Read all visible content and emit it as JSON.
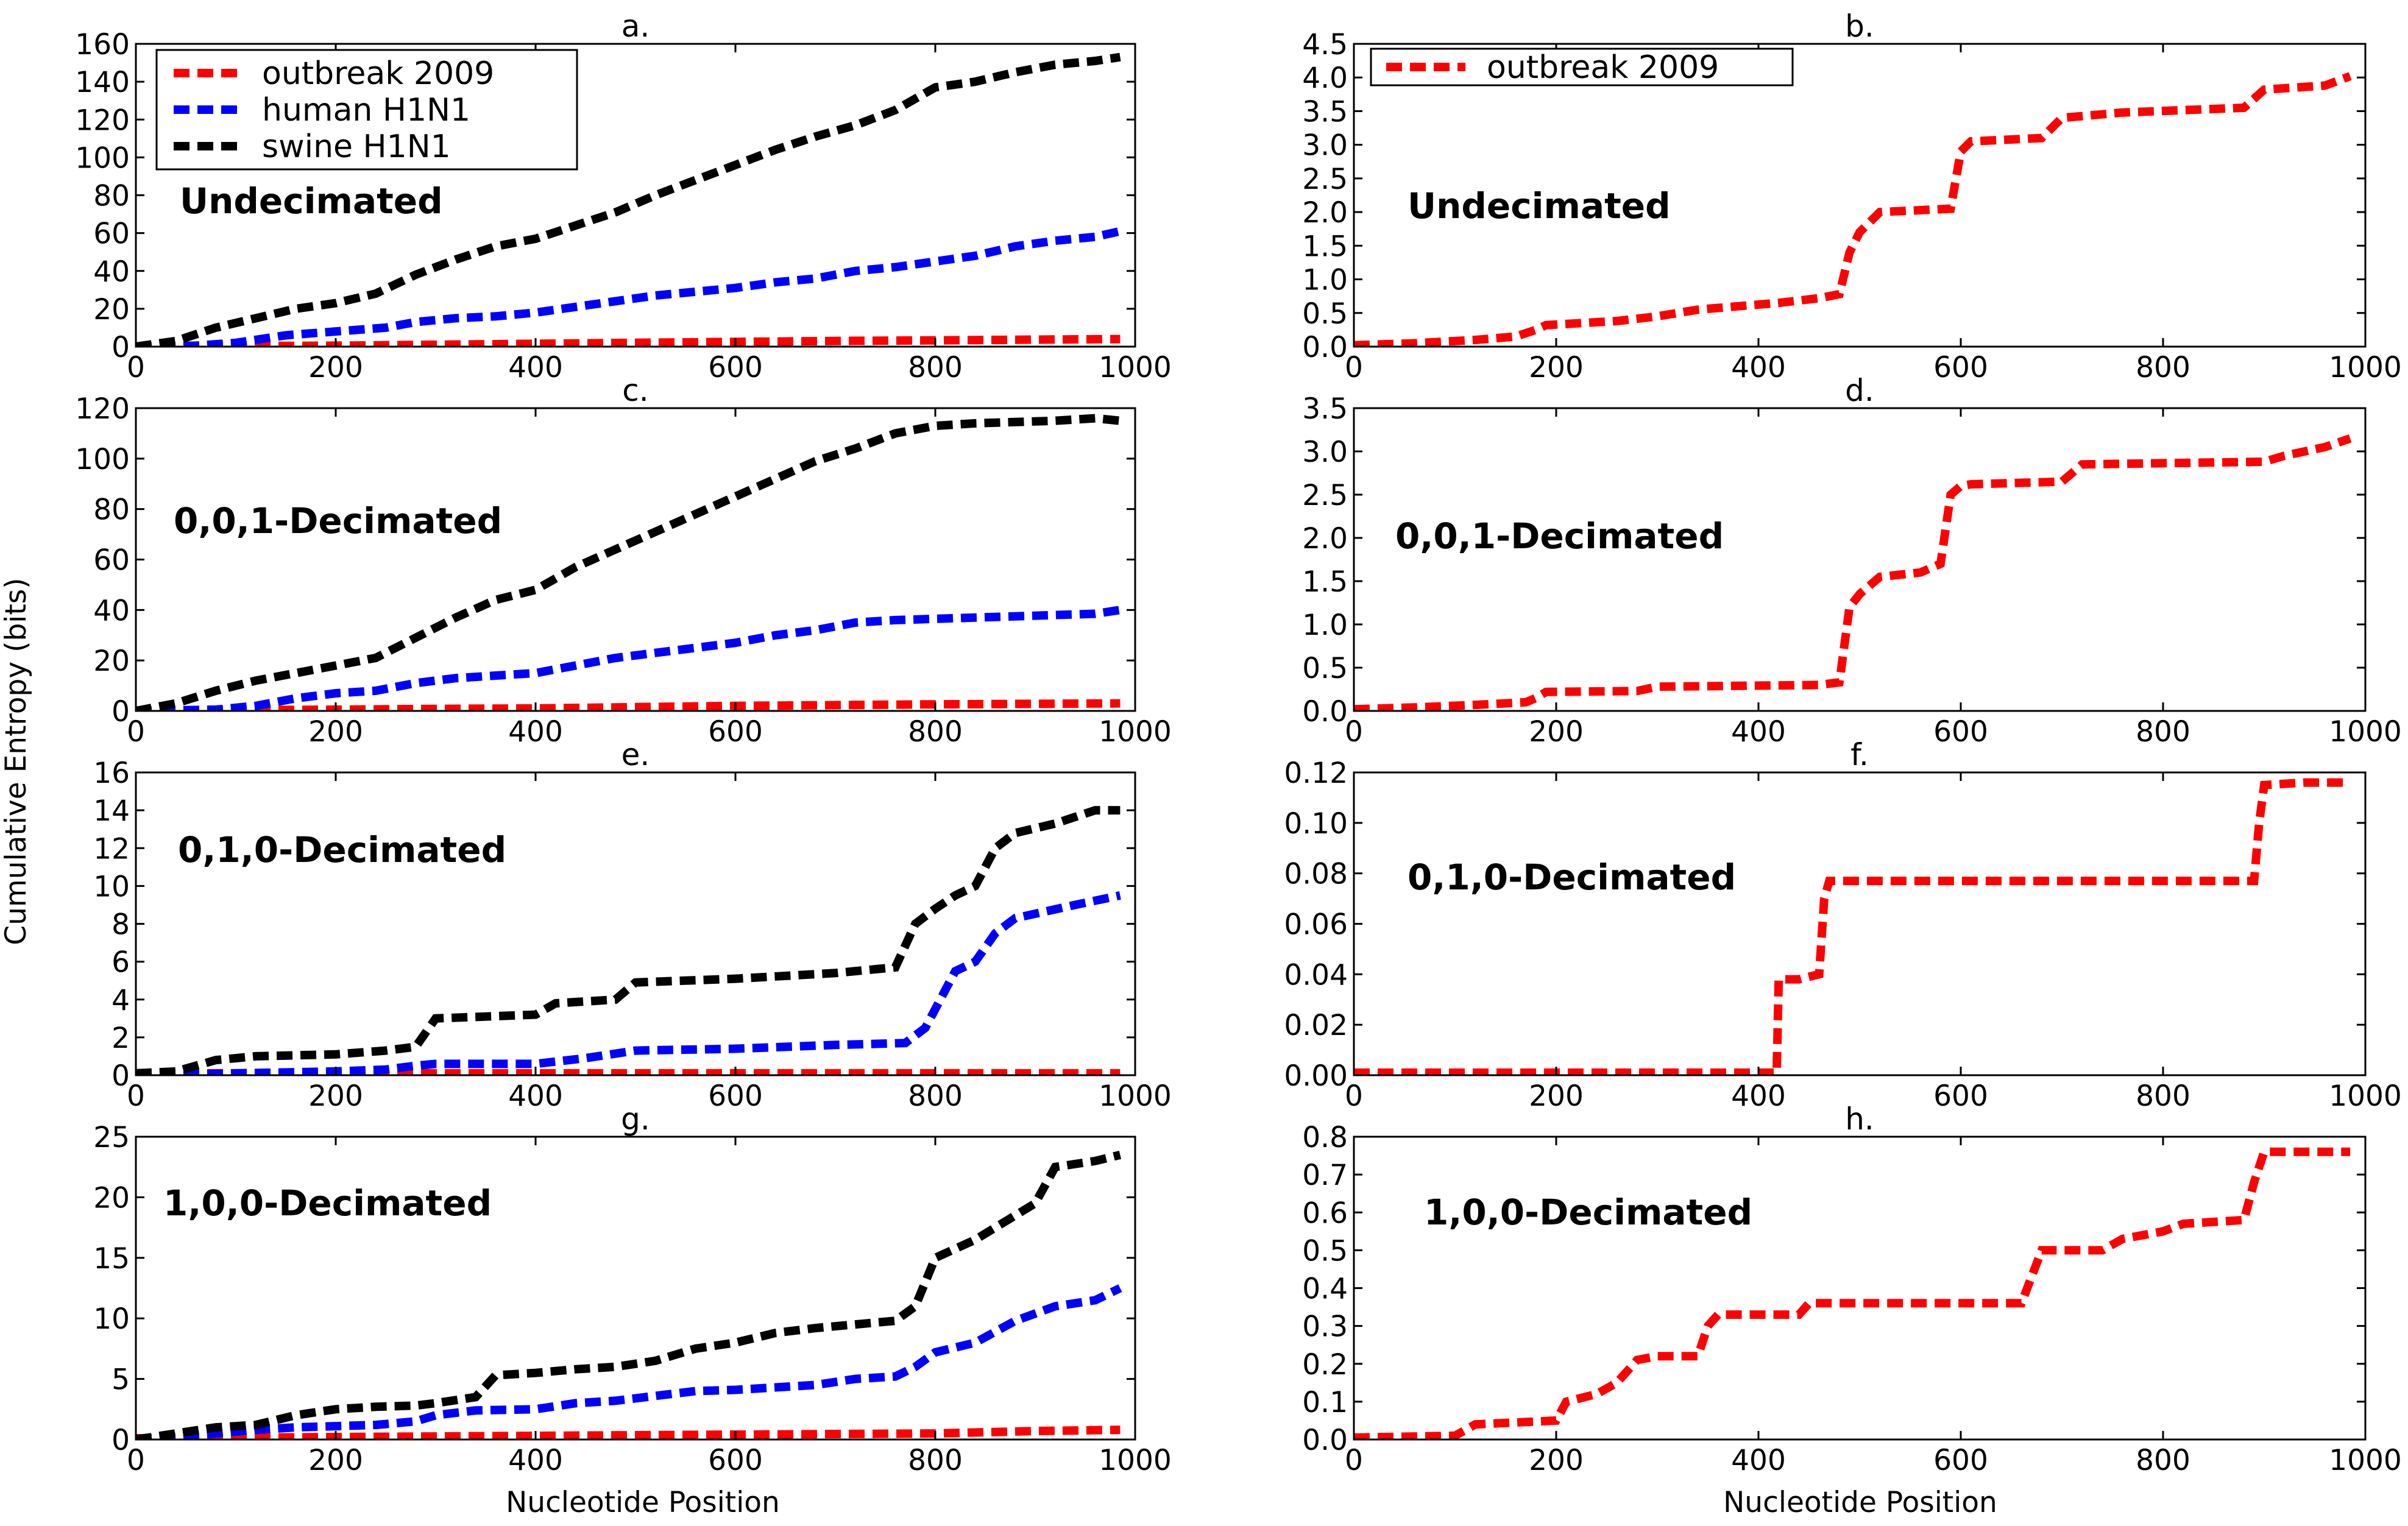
{
  "figure": {
    "ylabel": "Cumulative Entropy (bits)",
    "xlabel": "Nucleotide Position"
  },
  "legend_a": [
    "outbreak 2009",
    "human H1N1",
    "swine H1N1"
  ],
  "legend_b": [
    "outbreak 2009"
  ],
  "colors": {
    "outbreak": "#ff0000",
    "human": "#0000ff",
    "swine": "#000000"
  },
  "chart_data": [
    {
      "id": "a",
      "type": "line",
      "title": "a.",
      "annotation": "Undecimated",
      "xlim": [
        0,
        1000
      ],
      "ylim": [
        0,
        160
      ],
      "xticks": [
        0,
        200,
        400,
        600,
        800,
        1000
      ],
      "yticks": [
        0,
        20,
        40,
        60,
        80,
        100,
        120,
        140,
        160
      ],
      "ytick_labels": [
        "0",
        "20",
        "40",
        "60",
        "80",
        "100",
        "120",
        "140",
        "160"
      ],
      "series": [
        {
          "name": "outbreak 2009",
          "color": "#ff0000",
          "x": [
            0,
            100,
            200,
            300,
            400,
            500,
            600,
            700,
            800,
            900,
            985
          ],
          "y": [
            0,
            0.3,
            0.5,
            1.0,
            1.5,
            2.0,
            2.5,
            3.0,
            3.3,
            3.7,
            4.0
          ]
        },
        {
          "name": "human H1N1",
          "color": "#0000ff",
          "x": [
            0,
            60,
            100,
            150,
            200,
            250,
            280,
            320,
            360,
            400,
            440,
            480,
            520,
            560,
            600,
            640,
            680,
            720,
            760,
            800,
            840,
            880,
            920,
            960,
            985
          ],
          "y": [
            0,
            0.5,
            2,
            6,
            8,
            10,
            13,
            15,
            16,
            18,
            21,
            24,
            27,
            29,
            31,
            34,
            36,
            40,
            42,
            45,
            48,
            53,
            56,
            58,
            61
          ]
        },
        {
          "name": "swine H1N1",
          "color": "#000000",
          "x": [
            0,
            40,
            80,
            120,
            160,
            200,
            240,
            280,
            320,
            360,
            400,
            440,
            480,
            520,
            560,
            600,
            640,
            680,
            720,
            760,
            800,
            840,
            880,
            920,
            960,
            985
          ],
          "y": [
            0,
            3,
            10,
            15,
            20,
            23,
            28,
            38,
            46,
            53,
            57,
            64,
            71,
            80,
            88,
            96,
            104,
            111,
            117,
            125,
            137,
            140,
            145,
            149,
            151,
            153
          ]
        }
      ]
    },
    {
      "id": "b",
      "type": "line",
      "title": "b.",
      "annotation": "Undecimated",
      "xlim": [
        0,
        1000
      ],
      "ylim": [
        0,
        4.5
      ],
      "xticks": [
        0,
        200,
        400,
        600,
        800,
        1000
      ],
      "yticks": [
        0,
        0.5,
        1.0,
        1.5,
        2.0,
        2.5,
        3.0,
        3.5,
        4.0,
        4.5
      ],
      "ytick_labels": [
        "0.0",
        "0.5",
        "1.0",
        "1.5",
        "2.0",
        "2.5",
        "3.0",
        "3.5",
        "4.0",
        "4.5"
      ],
      "series": [
        {
          "name": "outbreak 2009",
          "color": "#ff0000",
          "x": [
            0,
            60,
            120,
            160,
            180,
            190,
            260,
            300,
            340,
            380,
            420,
            460,
            480,
            490,
            500,
            520,
            590,
            600,
            610,
            680,
            700,
            760,
            880,
            900,
            960,
            985
          ],
          "y": [
            0.02,
            0.05,
            0.1,
            0.15,
            0.25,
            0.32,
            0.38,
            0.45,
            0.55,
            0.6,
            0.65,
            0.72,
            0.78,
            1.4,
            1.7,
            2.0,
            2.05,
            2.9,
            3.05,
            3.1,
            3.4,
            3.48,
            3.55,
            3.82,
            3.88,
            4.02
          ]
        }
      ]
    },
    {
      "id": "c",
      "type": "line",
      "title": "c.",
      "annotation": "0,0,1-Decimated",
      "xlim": [
        0,
        1000
      ],
      "ylim": [
        0,
        120
      ],
      "xticks": [
        0,
        200,
        400,
        600,
        800,
        1000
      ],
      "yticks": [
        0,
        20,
        40,
        60,
        80,
        100,
        120
      ],
      "ytick_labels": [
        "0",
        "20",
        "40",
        "60",
        "80",
        "100",
        "120"
      ],
      "series": [
        {
          "name": "outbreak 2009",
          "color": "#ff0000",
          "x": [
            0,
            100,
            200,
            300,
            400,
            500,
            600,
            700,
            800,
            900,
            985
          ],
          "y": [
            0,
            0.3,
            0.5,
            0.8,
            1.0,
            1.5,
            2.0,
            2.3,
            2.6,
            2.8,
            3.0
          ]
        },
        {
          "name": "human H1N1",
          "color": "#0000ff",
          "x": [
            0,
            80,
            120,
            160,
            200,
            240,
            280,
            320,
            360,
            400,
            440,
            480,
            520,
            560,
            600,
            640,
            680,
            720,
            760,
            800,
            840,
            880,
            920,
            960,
            985
          ],
          "y": [
            0,
            0.5,
            2,
            5,
            7,
            8,
            11,
            13,
            14,
            15,
            18,
            21,
            23,
            25,
            27,
            30,
            32,
            35,
            36,
            36.5,
            37,
            37.5,
            38,
            38.5,
            40
          ]
        },
        {
          "name": "swine H1N1",
          "color": "#000000",
          "x": [
            0,
            40,
            80,
            120,
            160,
            200,
            240,
            280,
            320,
            360,
            400,
            440,
            480,
            520,
            560,
            600,
            640,
            680,
            720,
            760,
            800,
            840,
            880,
            920,
            960,
            985
          ],
          "y": [
            0,
            3,
            8,
            12,
            15,
            18,
            21,
            29,
            37,
            44,
            48,
            57,
            64,
            71,
            78,
            85,
            92,
            99,
            104,
            110,
            113,
            114,
            114.5,
            115,
            116,
            115
          ]
        }
      ]
    },
    {
      "id": "d",
      "type": "line",
      "title": "d.",
      "annotation": "0,0,1-Decimated",
      "xlim": [
        0,
        1000
      ],
      "ylim": [
        0,
        3.5
      ],
      "xticks": [
        0,
        200,
        400,
        600,
        800,
        1000
      ],
      "yticks": [
        0,
        0.5,
        1.0,
        1.5,
        2.0,
        2.5,
        3.0,
        3.5
      ],
      "ytick_labels": [
        "0.0",
        "0.5",
        "1.0",
        "1.5",
        "2.0",
        "2.5",
        "3.0",
        "3.5"
      ],
      "series": [
        {
          "name": "outbreak 2009",
          "color": "#ff0000",
          "x": [
            0,
            60,
            120,
            170,
            180,
            190,
            280,
            300,
            460,
            480,
            490,
            500,
            520,
            560,
            580,
            590,
            600,
            610,
            700,
            720,
            900,
            920,
            960,
            985
          ],
          "y": [
            0.02,
            0.04,
            0.07,
            0.1,
            0.15,
            0.22,
            0.23,
            0.28,
            0.3,
            0.33,
            1.2,
            1.35,
            1.55,
            1.6,
            1.7,
            2.5,
            2.6,
            2.62,
            2.65,
            2.85,
            2.88,
            2.95,
            3.05,
            3.15
          ]
        }
      ]
    },
    {
      "id": "e",
      "type": "line",
      "title": "e.",
      "annotation": "0,1,0-Decimated",
      "xlim": [
        0,
        1000
      ],
      "ylim": [
        0,
        16
      ],
      "xticks": [
        0,
        200,
        400,
        600,
        800,
        1000
      ],
      "yticks": [
        0,
        2,
        4,
        6,
        8,
        10,
        12,
        14,
        16
      ],
      "ytick_labels": [
        "0",
        "2",
        "4",
        "6",
        "8",
        "10",
        "12",
        "14",
        "16"
      ],
      "series": [
        {
          "name": "outbreak 2009",
          "color": "#ff0000",
          "x": [
            0,
            200,
            400,
            600,
            800,
            985
          ],
          "y": [
            0.1,
            0.1,
            0.1,
            0.1,
            0.1,
            0.1
          ]
        },
        {
          "name": "human H1N1",
          "color": "#0000ff",
          "x": [
            0,
            100,
            200,
            250,
            280,
            300,
            400,
            450,
            500,
            600,
            700,
            770,
            790,
            800,
            820,
            840,
            860,
            880,
            940,
            985
          ],
          "y": [
            0,
            0.1,
            0.2,
            0.3,
            0.5,
            0.6,
            0.6,
            0.9,
            1.3,
            1.4,
            1.6,
            1.7,
            2.5,
            3.5,
            5.5,
            6.0,
            7.5,
            8.3,
            9.0,
            9.5
          ]
        },
        {
          "name": "swine H1N1",
          "color": "#000000",
          "x": [
            0,
            40,
            80,
            120,
            200,
            250,
            280,
            300,
            400,
            420,
            480,
            500,
            600,
            700,
            760,
            780,
            800,
            820,
            840,
            860,
            880,
            920,
            960,
            985
          ],
          "y": [
            0.1,
            0.2,
            0.8,
            1.0,
            1.1,
            1.3,
            1.5,
            3.0,
            3.2,
            3.8,
            4.0,
            4.9,
            5.1,
            5.4,
            5.7,
            8.0,
            8.8,
            9.5,
            10.0,
            12.0,
            12.8,
            13.3,
            14.0,
            14.0
          ]
        }
      ]
    },
    {
      "id": "f",
      "type": "line",
      "title": "f.",
      "annotation": "0,1,0-Decimated",
      "xlim": [
        0,
        1000
      ],
      "ylim": [
        0,
        0.12
      ],
      "xticks": [
        0,
        200,
        400,
        600,
        800,
        1000
      ],
      "yticks": [
        0,
        0.02,
        0.04,
        0.06,
        0.08,
        0.1,
        0.12
      ],
      "ytick_labels": [
        "0.00",
        "0.02",
        "0.04",
        "0.06",
        "0.08",
        "0.10",
        "0.12"
      ],
      "series": [
        {
          "name": "outbreak 2009",
          "color": "#ff0000",
          "x": [
            0,
            400,
            418,
            420,
            440,
            460,
            465,
            470,
            860,
            890,
            895,
            900,
            940,
            985
          ],
          "y": [
            0.001,
            0.001,
            0.001,
            0.038,
            0.038,
            0.04,
            0.07,
            0.077,
            0.077,
            0.077,
            0.1,
            0.115,
            0.116,
            0.116
          ]
        }
      ]
    },
    {
      "id": "g",
      "type": "line",
      "title": "g.",
      "annotation": "1,0,0-Decimated",
      "xlim": [
        0,
        1000
      ],
      "ylim": [
        0,
        25
      ],
      "xticks": [
        0,
        200,
        400,
        600,
        800,
        1000
      ],
      "yticks": [
        0,
        5,
        10,
        15,
        20,
        25
      ],
      "ytick_labels": [
        "0",
        "5",
        "10",
        "15",
        "20",
        "25"
      ],
      "series": [
        {
          "name": "outbreak 2009",
          "color": "#ff0000",
          "x": [
            0,
            200,
            400,
            600,
            800,
            900,
            985
          ],
          "y": [
            0.1,
            0.2,
            0.3,
            0.4,
            0.5,
            0.7,
            0.8
          ]
        },
        {
          "name": "human H1N1",
          "color": "#0000ff",
          "x": [
            0,
            80,
            120,
            160,
            200,
            240,
            280,
            300,
            340,
            400,
            440,
            480,
            520,
            560,
            600,
            640,
            680,
            720,
            760,
            780,
            800,
            840,
            880,
            920,
            960,
            985
          ],
          "y": [
            0,
            0.5,
            0.8,
            1.0,
            1.1,
            1.2,
            1.5,
            2.0,
            2.4,
            2.5,
            3.0,
            3.2,
            3.6,
            4.0,
            4.1,
            4.3,
            4.5,
            5.0,
            5.2,
            6.0,
            7.2,
            8.0,
            9.8,
            11.0,
            11.5,
            12.5
          ]
        },
        {
          "name": "swine H1N1",
          "color": "#000000",
          "x": [
            0,
            40,
            80,
            120,
            160,
            200,
            240,
            280,
            300,
            340,
            360,
            400,
            440,
            480,
            520,
            560,
            600,
            640,
            680,
            720,
            760,
            780,
            800,
            840,
            880,
            900,
            920,
            960,
            985
          ],
          "y": [
            0,
            0.5,
            1.0,
            1.2,
            2.0,
            2.5,
            2.7,
            2.8,
            3.0,
            3.5,
            5.3,
            5.5,
            5.8,
            6.0,
            6.5,
            7.5,
            8.0,
            8.8,
            9.2,
            9.5,
            9.8,
            11.0,
            15.0,
            16.5,
            18.5,
            19.5,
            22.5,
            23.0,
            23.5
          ]
        }
      ]
    },
    {
      "id": "h",
      "type": "line",
      "title": "h.",
      "annotation": "1,0,0-Decimated",
      "xlim": [
        0,
        1000
      ],
      "ylim": [
        0,
        0.8
      ],
      "xticks": [
        0,
        200,
        400,
        600,
        800,
        1000
      ],
      "yticks": [
        0,
        0.1,
        0.2,
        0.3,
        0.4,
        0.5,
        0.6,
        0.7,
        0.8
      ],
      "ytick_labels": [
        "0.0",
        "0.1",
        "0.2",
        "0.3",
        "0.4",
        "0.5",
        "0.6",
        "0.7",
        "0.8"
      ],
      "series": [
        {
          "name": "outbreak 2009",
          "color": "#ff0000",
          "x": [
            0,
            100,
            120,
            200,
            210,
            240,
            260,
            280,
            300,
            340,
            350,
            360,
            440,
            450,
            660,
            680,
            700,
            740,
            760,
            800,
            820,
            880,
            890,
            900,
            985
          ],
          "y": [
            0.005,
            0.01,
            0.04,
            0.05,
            0.1,
            0.12,
            0.15,
            0.21,
            0.22,
            0.22,
            0.3,
            0.33,
            0.33,
            0.36,
            0.36,
            0.5,
            0.5,
            0.5,
            0.53,
            0.55,
            0.57,
            0.58,
            0.68,
            0.76,
            0.76
          ]
        }
      ]
    }
  ]
}
